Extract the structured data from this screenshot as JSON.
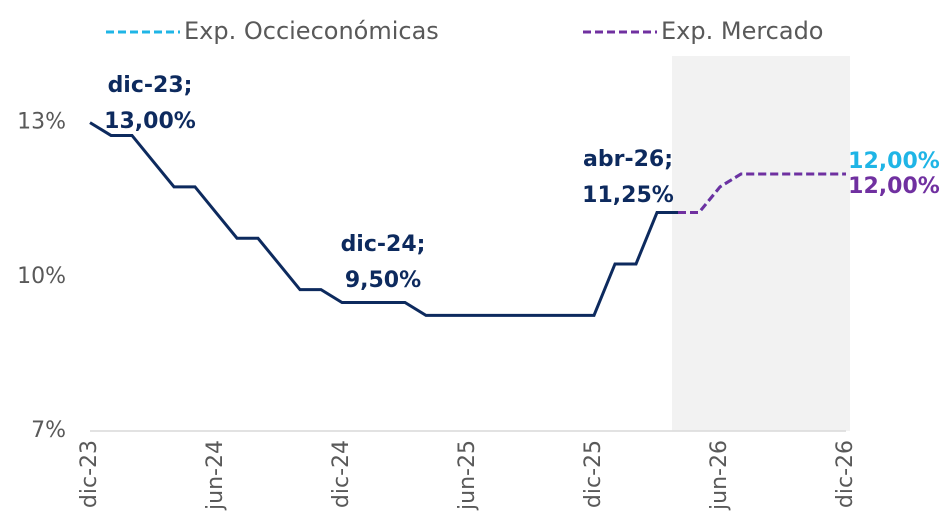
{
  "chart_data": {
    "type": "line",
    "categories": [
      "dic-23",
      null,
      null,
      null,
      null,
      null,
      "jun-24",
      null,
      null,
      null,
      null,
      null,
      "dic-24",
      null,
      null,
      null,
      null,
      null,
      "jun-25",
      null,
      null,
      null,
      null,
      null,
      "dic-25",
      null,
      null,
      null,
      null,
      null,
      "jun-26",
      null,
      null,
      null,
      null,
      null,
      "dic-26"
    ],
    "series": [
      {
        "color": "#0d2a5e",
        "dashed": false,
        "values": [
          13,
          12.75,
          12.75,
          12.25,
          11.75,
          11.75,
          11.25,
          10.75,
          10.75,
          10.25,
          9.75,
          9.75,
          9.5,
          9.5,
          9.5,
          9.5,
          9.25,
          9.25,
          9.25,
          9.25,
          9.25,
          9.25,
          9.25,
          9.25,
          9.25,
          10.25,
          10.25,
          11.25,
          11.25,
          null,
          null,
          null,
          null,
          null,
          null,
          null,
          null
        ]
      },
      {
        "name": "Exp. Occieconómicas",
        "color": "#1fb5e6",
        "dashed": true,
        "values": [
          null,
          null,
          null,
          null,
          null,
          null,
          null,
          null,
          null,
          null,
          null,
          null,
          null,
          null,
          null,
          null,
          null,
          null,
          null,
          null,
          null,
          null,
          null,
          null,
          null,
          null,
          null,
          null,
          11.25,
          11.25,
          11.75,
          12,
          12,
          12,
          12,
          12,
          12
        ],
        "value_labels": [
          null,
          null,
          null,
          null,
          null,
          null,
          null,
          null,
          null,
          null,
          null,
          null,
          null,
          null,
          null,
          null,
          null,
          null,
          null,
          null,
          null,
          null,
          null,
          null,
          null,
          null,
          null,
          null,
          null,
          null,
          null,
          null,
          null,
          null,
          null,
          null,
          "12,00%"
        ]
      },
      {
        "name": "Exp. Mercado",
        "color": "#7030a0",
        "dashed": true,
        "values": [
          null,
          null,
          null,
          null,
          null,
          null,
          null,
          null,
          null,
          null,
          null,
          null,
          null,
          null,
          null,
          null,
          null,
          null,
          null,
          null,
          null,
          null,
          null,
          null,
          null,
          null,
          null,
          null,
          11.25,
          11.25,
          11.75,
          12,
          12,
          12,
          12,
          12,
          12
        ],
        "value_labels": [
          null,
          null,
          null,
          null,
          null,
          null,
          null,
          null,
          null,
          null,
          null,
          null,
          null,
          null,
          null,
          null,
          null,
          null,
          null,
          null,
          null,
          null,
          null,
          null,
          null,
          null,
          null,
          null,
          null,
          null,
          null,
          null,
          null,
          null,
          null,
          null,
          "12,00%"
        ]
      }
    ],
    "annotations": [
      {
        "lines": [
          "dic-23;",
          "13,00%"
        ]
      },
      {
        "lines": [
          "dic-24;",
          "9,50%"
        ]
      },
      {
        "lines": [
          "abr-26;",
          "11,25%"
        ]
      }
    ],
    "ylim": [
      7,
      14.5
    ],
    "yticks": [
      {
        "value": 7,
        "label": "7%"
      },
      {
        "value": 10,
        "label": "10%"
      },
      {
        "value": 13,
        "label": "13%"
      }
    ],
    "grid": false
  }
}
